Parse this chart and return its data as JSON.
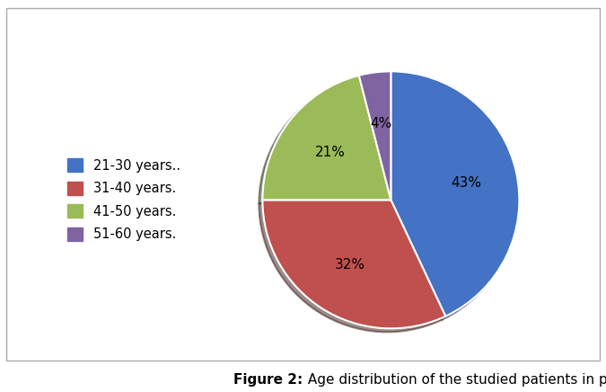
{
  "labels": [
    "21-30 years..",
    "31-40 years.",
    "41-50 years.",
    "51-60 years."
  ],
  "values": [
    43,
    32,
    21,
    4
  ],
  "colors": [
    "#4472C4",
    "#C0504D",
    "#9BBB59",
    "#8064A2"
  ],
  "pct_labels": [
    "43%",
    "32%",
    "21%",
    "4%"
  ],
  "startangle": 90,
  "figsize": [
    6.75,
    4.36
  ],
  "caption_bold": "Figure 2:",
  "caption_normal": " Age distribution of the studied patients in percentage.",
  "caption_fontsize": 11,
  "legend_fontsize": 10.5,
  "pct_fontsize": 11,
  "bg_color": "#FFFFFF",
  "border_color": "#AAAAAA",
  "wedge_edge_color": "#FFFFFF",
  "shadow": true
}
